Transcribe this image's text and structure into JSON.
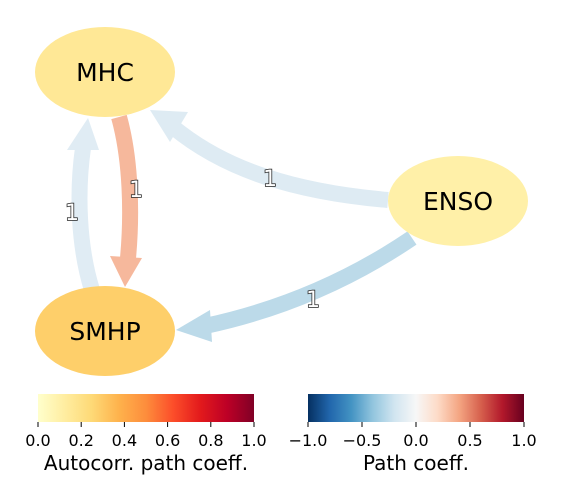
{
  "nodes": {
    "mhc": {
      "label": "MHC",
      "color": "#ffe896"
    },
    "enso": {
      "label": "ENSO",
      "color": "#fff0a8"
    },
    "smhp": {
      "label": "SMHP",
      "color": "#fecf6a"
    }
  },
  "edges": [
    {
      "from": "ENSO",
      "to": "MHC",
      "label": "1",
      "color": "#deebf3"
    },
    {
      "from": "ENSO",
      "to": "SMHP",
      "label": "1",
      "color": "#bcdae9"
    },
    {
      "from": "MHC",
      "to": "SMHP",
      "label": "1",
      "color": "#f6b89c"
    },
    {
      "from": "SMHP",
      "to": "MHC",
      "label": "1",
      "color": "#e0ecf4"
    }
  ],
  "colorbars": {
    "autocorr": {
      "title": "Autocorr. path coeff.",
      "ticks": [
        "0.0",
        "0.2",
        "0.4",
        "0.6",
        "0.8",
        "1.0"
      ],
      "colors": [
        "#ffffcc",
        "#ffeda0",
        "#fed976",
        "#feb24c",
        "#fd8d3c",
        "#fc4e2a",
        "#e31a1c",
        "#bd0026",
        "#800026"
      ]
    },
    "path": {
      "title": "Path coeff.",
      "ticks": [
        "−1.0",
        "−0.5",
        "0.0",
        "0.5",
        "1.0"
      ],
      "colors": [
        "#053061",
        "#2166ac",
        "#4393c3",
        "#92c5de",
        "#d1e5f0",
        "#f7f7f7",
        "#fddbc7",
        "#f4a582",
        "#d6604d",
        "#b2182b",
        "#67001f"
      ]
    }
  }
}
